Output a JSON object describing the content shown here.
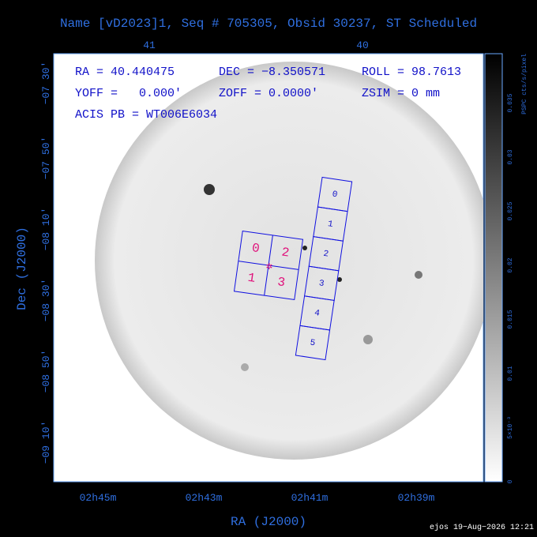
{
  "title": "Name [vD2023]1, Seq # 705305, Obsid 30237, ST Scheduled",
  "info": {
    "ra": "RA = 40.440475",
    "dec": "DEC = −8.350571",
    "roll": "ROLL = 98.7613",
    "yoff": "YOFF =   0.000′",
    "zoff": "ZOFF =  0.0000′",
    "zsim": "ZSIM = 0 mm",
    "acis_pb": "ACIS PB = WT006E6034"
  },
  "top_ticks": [
    "41",
    "40"
  ],
  "left_ticks": [
    "−07 30′",
    "−07 50′",
    "−08 10′",
    "−08 30′",
    "−08 50′",
    "−09 10′"
  ],
  "bottom_ticks": [
    "02h45m",
    "02h43m",
    "02h41m",
    "02h39m"
  ],
  "x_label": "RA (J2000)",
  "y_label": "Dec (J2000)",
  "colorbar": {
    "label": "PSPC cts/s/pixel",
    "ticks": [
      "0",
      "5×10⁻³",
      "0.01",
      "0.015",
      "0.02",
      "0.025",
      "0.03",
      "0.035"
    ]
  },
  "acis_i_chips": [
    "0",
    "2",
    "1",
    "3"
  ],
  "acis_s_chips": [
    "0",
    "1",
    "2",
    "3",
    "4",
    "5"
  ],
  "footer": "ejos 19−Aug−2026 12:21"
}
